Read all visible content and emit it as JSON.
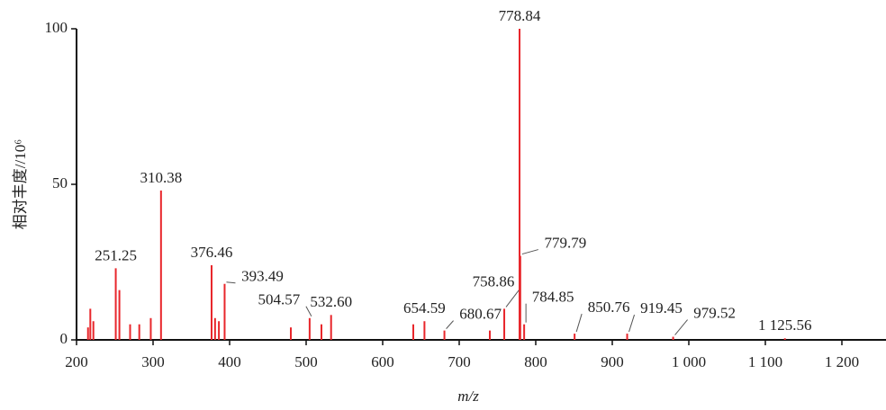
{
  "chart_data": {
    "type": "stem",
    "x_label": "m/z",
    "y_label": "相对丰度//10⁶",
    "xlim": [
      200,
      1260
    ],
    "ylim": [
      0,
      100
    ],
    "xticks": [
      200,
      300,
      400,
      500,
      600,
      700,
      800,
      900,
      {
        "value": 1000,
        "label": "1 000"
      },
      {
        "value": 1100,
        "label": "1 100"
      },
      {
        "value": 1200,
        "label": "1 200"
      }
    ],
    "yticks": [
      0,
      50,
      100
    ],
    "series": [
      {
        "color": "#e8262b",
        "x": [
          215,
          218,
          222,
          251.25,
          256,
          270,
          282,
          297,
          310.38,
          376.46,
          381,
          386,
          393.49,
          480,
          504.57,
          520,
          532.6,
          640,
          654.59,
          680.67,
          740,
          758.86,
          778.84,
          779.79,
          784.85,
          850.76,
          919.45,
          979.52,
          1125.56
        ],
        "values": [
          4,
          10,
          6,
          23,
          16,
          5,
          5,
          7,
          48,
          24,
          7,
          6,
          18,
          4,
          7,
          5,
          8,
          5,
          6,
          3,
          3,
          10,
          100,
          27,
          5,
          2,
          2,
          1,
          0.5
        ],
        "labels": [
          null,
          null,
          null,
          "251.25",
          null,
          null,
          null,
          null,
          "310.38",
          "376.46",
          null,
          null,
          "393.49",
          null,
          "504.57",
          null,
          "532.60",
          null,
          "654.59",
          "680.67",
          null,
          "758.86",
          "778.84",
          "779.79",
          "784.85",
          "850.76",
          "919.45",
          "979.52",
          "1 125.56"
        ]
      }
    ]
  }
}
